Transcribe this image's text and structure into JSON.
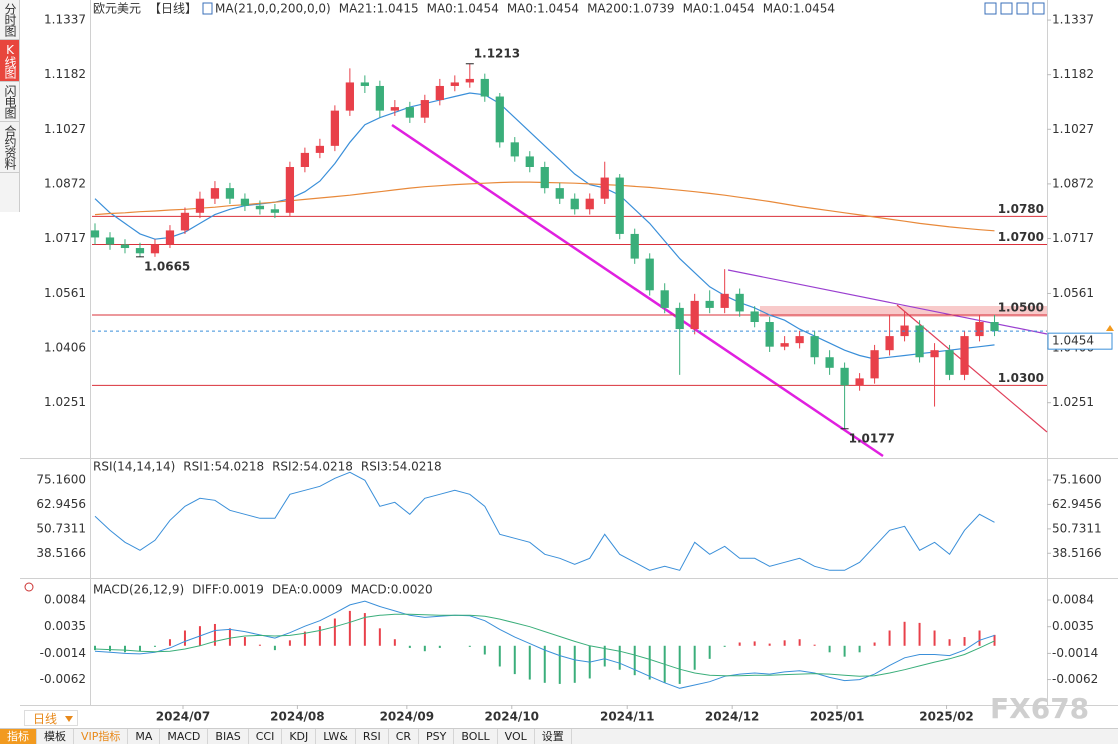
{
  "chart_data": [
    {
      "type": "candlestick",
      "symbol": "欧元美元",
      "period": "【日线】",
      "indicator": "MA(21,0,0,200,0,0)",
      "up_color": "#e8404a",
      "down_color": "#3aae7a",
      "xlim": [
        -0.2,
        63.5
      ],
      "xticks": [
        {
          "value": 5.87,
          "label": "2024/07"
        },
        {
          "value": 13.5,
          "label": "2024/08"
        },
        {
          "value": 20.8,
          "label": "2024/09"
        },
        {
          "value": 27.8,
          "label": "2024/10"
        },
        {
          "value": 35.5,
          "label": "2024/11"
        },
        {
          "value": 42.5,
          "label": "2024/12"
        },
        {
          "value": 49.5,
          "label": "2025/01"
        },
        {
          "value": 56.8,
          "label": "2025/02"
        }
      ],
      "ylim": [
        1.0094,
        1.1394
      ],
      "yticks": [
        1.1337,
        1.1182,
        1.1027,
        1.0872,
        1.0717,
        1.0561,
        1.0406,
        1.0251
      ],
      "open": [
        1.074,
        1.072,
        1.07,
        1.069,
        1.0675,
        1.07,
        1.074,
        1.079,
        1.083,
        1.086,
        1.083,
        1.081,
        1.08,
        1.079,
        1.092,
        1.096,
        1.098,
        1.108,
        1.116,
        1.115,
        1.108,
        1.109,
        1.106,
        1.111,
        1.115,
        1.116,
        1.117,
        1.112,
        1.099,
        1.095,
        1.092,
        1.086,
        1.083,
        1.08,
        1.083,
        1.089,
        1.073,
        1.066,
        1.057,
        1.052,
        1.046,
        1.054,
        1.052,
        1.056,
        1.051,
        1.048,
        1.041,
        1.042,
        1.044,
        1.038,
        1.035,
        1.03,
        1.032,
        1.04,
        1.044,
        1.047,
        1.038,
        1.04,
        1.033,
        1.044,
        1.048
      ],
      "high": [
        1.076,
        1.0735,
        1.0715,
        1.0705,
        1.0715,
        1.0755,
        1.0805,
        1.085,
        1.088,
        1.0875,
        1.0845,
        1.0825,
        1.0815,
        1.0935,
        1.0975,
        1.1,
        1.1095,
        1.12,
        1.118,
        1.1165,
        1.111,
        1.1105,
        1.1125,
        1.117,
        1.118,
        1.1213,
        1.1185,
        1.113,
        1.1005,
        1.0965,
        1.0935,
        1.0875,
        1.0845,
        1.0845,
        1.0935,
        1.09,
        1.0745,
        1.0675,
        1.059,
        1.0535,
        1.056,
        1.057,
        1.063,
        1.0575,
        1.0525,
        1.0495,
        1.044,
        1.0455,
        1.0455,
        1.04,
        1.0365,
        1.0335,
        1.0415,
        1.05,
        1.051,
        1.0485,
        1.042,
        1.0415,
        1.0455,
        1.05,
        1.05
      ],
      "low": [
        1.07,
        1.0685,
        1.0675,
        1.0665,
        1.0665,
        1.069,
        1.073,
        1.0775,
        1.0815,
        1.0815,
        1.0795,
        1.0785,
        1.0775,
        1.078,
        1.0905,
        1.0945,
        1.0965,
        1.1065,
        1.113,
        1.106,
        1.1065,
        1.1045,
        1.1045,
        1.1095,
        1.1135,
        1.1145,
        1.1105,
        1.0975,
        1.0935,
        1.0905,
        1.0845,
        1.0815,
        1.0785,
        1.0785,
        1.0815,
        1.0715,
        1.0645,
        1.0555,
        1.0505,
        1.033,
        1.0445,
        1.0505,
        1.0505,
        1.0495,
        1.0465,
        1.0395,
        1.04,
        1.0405,
        1.036,
        1.033,
        1.0177,
        1.0285,
        1.0305,
        1.0385,
        1.0425,
        1.0365,
        1.024,
        1.0315,
        1.0315,
        1.0425,
        1.044
      ],
      "close": [
        1.072,
        1.07,
        1.069,
        1.0675,
        1.07,
        1.074,
        1.079,
        1.083,
        1.086,
        1.083,
        1.081,
        1.08,
        1.079,
        1.092,
        1.096,
        1.098,
        1.108,
        1.116,
        1.115,
        1.108,
        1.109,
        1.106,
        1.111,
        1.115,
        1.116,
        1.117,
        1.112,
        1.099,
        1.095,
        1.092,
        1.086,
        1.083,
        1.08,
        1.083,
        1.089,
        1.073,
        1.066,
        1.057,
        1.052,
        1.046,
        1.054,
        1.052,
        1.056,
        1.051,
        1.048,
        1.041,
        1.042,
        1.044,
        1.038,
        1.035,
        1.03,
        1.032,
        1.04,
        1.044,
        1.047,
        1.038,
        1.04,
        1.033,
        1.044,
        1.048,
        1.0454
      ],
      "ma": [
        {
          "label": "MA21:1.0415",
          "color": "#3a8fd9",
          "values": [
            1.083,
            1.079,
            1.076,
            1.073,
            1.0715,
            1.072,
            1.0735,
            1.076,
            1.0785,
            1.08,
            1.081,
            1.0815,
            1.082,
            1.083,
            1.085,
            1.088,
            1.093,
            1.099,
            1.104,
            1.106,
            1.1075,
            1.109,
            1.11,
            1.111,
            1.112,
            1.113,
            1.1125,
            1.11,
            1.106,
            1.102,
            1.098,
            1.094,
            1.09,
            1.087,
            1.086,
            1.084,
            1.08,
            1.076,
            1.071,
            1.066,
            1.062,
            1.058,
            1.0555,
            1.0535,
            1.052,
            1.05,
            1.0485,
            1.046,
            1.044,
            1.042,
            1.04,
            1.0385,
            1.0375,
            1.038,
            1.0385,
            1.039,
            1.0395,
            1.04,
            1.0405,
            1.041,
            1.0415
          ]
        },
        {
          "label": "MA0:1.0454",
          "color": "#3a8fd9"
        },
        {
          "label": "MA0:1.0454",
          "color": "#3a8fd9"
        },
        {
          "label": "MA200:1.0739",
          "color": "#e8893a",
          "values": [
            1.0785,
            1.0788,
            1.079,
            1.0793,
            1.0795,
            1.0798,
            1.08,
            1.0803,
            1.0806,
            1.081,
            1.0813,
            1.0817,
            1.082,
            1.0824,
            1.0828,
            1.0832,
            1.0836,
            1.084,
            1.0845,
            1.085,
            1.0855,
            1.086,
            1.0864,
            1.0867,
            1.087,
            1.0872,
            1.0874,
            1.0876,
            1.0877,
            1.0877,
            1.0876,
            1.0875,
            1.0874,
            1.0872,
            1.087,
            1.0868,
            1.0865,
            1.0862,
            1.0858,
            1.0854,
            1.085,
            1.0845,
            1.084,
            1.0834,
            1.0828,
            1.0822,
            1.0815,
            1.0808,
            1.0802,
            1.0796,
            1.079,
            1.0784,
            1.0778,
            1.0772,
            1.0766,
            1.076,
            1.0755,
            1.075,
            1.0746,
            1.0742,
            1.0739
          ]
        },
        {
          "label": "MA0:1.0454",
          "color": "#e070c8"
        },
        {
          "label": "MA0:1.0454",
          "color": "#9a86e0"
        }
      ],
      "levels": [
        {
          "value": 1.078,
          "label": "1.0780"
        },
        {
          "value": 1.07,
          "label": "1.0700"
        },
        {
          "value": 1.05,
          "label": "1.0500"
        },
        {
          "value": 1.03,
          "label": "1.0300"
        }
      ],
      "level_color": "#d9303a"
    },
    {
      "type": "line",
      "title": "RSI(14,14,14)",
      "legend_items": [
        {
          "label": "RSI1:54.0218",
          "color": "#3a8fd9"
        },
        {
          "label": "RSI2:54.0218",
          "color": "#3aae7a"
        },
        {
          "label": "RSI3:54.0218",
          "color": "#8f78d8"
        }
      ],
      "ylim": [
        26.16,
        85.16
      ],
      "yticks": [
        {
          "value": 75.16,
          "label": "75.1600"
        },
        62.9456,
        50.7311,
        38.5166
      ],
      "series": [
        {
          "color": "#3a8fd9",
          "values": [
            57,
            50,
            44,
            40,
            45,
            55,
            62,
            66,
            65,
            60,
            58,
            56,
            56,
            68,
            70,
            72,
            76,
            79,
            75,
            62,
            64,
            58,
            66,
            68,
            70,
            68,
            62,
            48,
            46,
            44,
            38,
            36,
            33,
            36,
            48,
            38,
            34,
            30,
            32,
            30,
            44,
            38,
            42,
            36,
            36,
            32,
            34,
            36,
            32,
            30,
            30,
            34,
            42,
            50,
            52,
            40,
            44,
            38,
            50,
            58,
            54.0218
          ]
        }
      ]
    },
    {
      "type": "macd",
      "title": "MACD(26,12,9)",
      "legend_items": [
        {
          "label": "DIFF:0.0019",
          "color": "#3a8fd9"
        },
        {
          "label": "DEA:0.0009",
          "color": "#3aae7a"
        },
        {
          "label": "MACD:0.0020",
          "color": "#8f78d8"
        }
      ],
      "ylim": [
        -0.01087,
        0.01207
      ],
      "yticks": [
        0.0084,
        0.0035,
        -0.0014,
        -0.0062
      ],
      "diff_color": "#3a8fd9",
      "dea_color": "#3aae7a",
      "up_color": "#e8404a",
      "down_color": "#3aae7a",
      "diff": [
        -0.001,
        -0.0012,
        -0.0014,
        -0.0015,
        -0.0012,
        -0.0004,
        0.0008,
        0.0018,
        0.0028,
        0.003,
        0.0026,
        0.002,
        0.0014,
        0.0024,
        0.0036,
        0.0046,
        0.006,
        0.0075,
        0.0082,
        0.0072,
        0.0064,
        0.0056,
        0.0052,
        0.0054,
        0.0056,
        0.0055,
        0.0046,
        0.003,
        0.0016,
        0.0004,
        -0.0008,
        -0.0018,
        -0.0026,
        -0.003,
        -0.0024,
        -0.0032,
        -0.0044,
        -0.0056,
        -0.0068,
        -0.0078,
        -0.0072,
        -0.0066,
        -0.0056,
        -0.0052,
        -0.005,
        -0.0052,
        -0.0048,
        -0.0046,
        -0.005,
        -0.0058,
        -0.0064,
        -0.0062,
        -0.0052,
        -0.0036,
        -0.0022,
        -0.0016,
        -0.0016,
        -0.0018,
        -0.0008,
        0.001,
        0.0019
      ],
      "dea": [
        -0.0006,
        -0.0007,
        -0.0008,
        -0.001,
        -0.0011,
        -0.001,
        -0.0006,
        0.0,
        0.0008,
        0.0014,
        0.0018,
        0.0019,
        0.0018,
        0.0019,
        0.0023,
        0.0028,
        0.0035,
        0.0043,
        0.0052,
        0.0056,
        0.0058,
        0.0058,
        0.0057,
        0.0056,
        0.0056,
        0.0056,
        0.0054,
        0.0049,
        0.0042,
        0.0035,
        0.0026,
        0.0017,
        0.0008,
        0.0,
        -0.0005,
        -0.001,
        -0.0017,
        -0.0025,
        -0.0034,
        -0.0043,
        -0.005,
        -0.0054,
        -0.0055,
        -0.0055,
        -0.0054,
        -0.0054,
        -0.0053,
        -0.0052,
        -0.0051,
        -0.0052,
        -0.0054,
        -0.0056,
        -0.0055,
        -0.005,
        -0.0044,
        -0.0037,
        -0.003,
        -0.0024,
        -0.0016,
        -0.0004,
        0.0009
      ],
      "macd": [
        -0.0008,
        -0.001,
        -0.0012,
        -0.001,
        -0.0002,
        0.0012,
        0.0028,
        0.0036,
        0.004,
        0.0032,
        0.0016,
        0.0002,
        -0.0008,
        0.001,
        0.0026,
        0.0036,
        0.005,
        0.0064,
        0.006,
        0.0032,
        0.0012,
        -0.0004,
        -0.001,
        -0.0004,
        0,
        -0.0002,
        -0.0016,
        -0.0038,
        -0.0052,
        -0.0062,
        -0.0068,
        -0.007,
        -0.0068,
        -0.006,
        -0.0038,
        -0.0044,
        -0.0054,
        -0.0062,
        -0.0068,
        -0.007,
        -0.0044,
        -0.0024,
        -0.0002,
        0.0006,
        0.0008,
        0.0004,
        0.001,
        0.0012,
        0.0002,
        -0.0012,
        -0.002,
        -0.0012,
        0.0006,
        0.0028,
        0.0044,
        0.0042,
        0.0028,
        0.0012,
        0.0016,
        0.0028,
        0.002
      ]
    }
  ],
  "ui": {
    "side_tabs": [
      "分时图",
      "K线图",
      "闪电图",
      "合约资料"
    ],
    "period_selector": "日线",
    "toolbar": [
      "指标",
      "模板",
      "VIP指标",
      "MA",
      "MACD",
      "BIAS",
      "CCI",
      "KDJ",
      "LW&",
      "RSI",
      "CR",
      "PSY",
      "BOLL",
      "VOL",
      "设置"
    ],
    "watermark": "FX678"
  }
}
